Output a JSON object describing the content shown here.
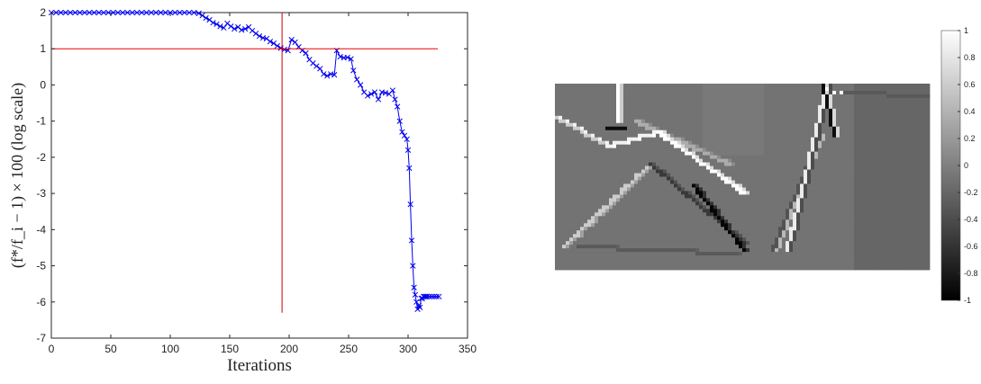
{
  "chart_data": [
    {
      "type": "line",
      "xlabel": "Iterations",
      "ylabel": "(f*/f_i − 1) × 100 (log scale)",
      "xlim": [
        0,
        350
      ],
      "ylim": [
        -7,
        2
      ],
      "x_ticks": [
        "0",
        "50",
        "100",
        "150",
        "200",
        "250",
        "300",
        "350"
      ],
      "y_ticks": [
        "2",
        "1",
        "0",
        "-1",
        "-2",
        "-3",
        "-4",
        "-5",
        "-6",
        "-7"
      ],
      "grid": false,
      "series": [
        {
          "color": "#0000ee",
          "marker": "x",
          "x": [
            0,
            4,
            8,
            12,
            16,
            20,
            24,
            28,
            32,
            36,
            40,
            44,
            48,
            52,
            56,
            60,
            64,
            68,
            72,
            76,
            80,
            84,
            88,
            92,
            96,
            100,
            104,
            108,
            112,
            116,
            120,
            124,
            127,
            130,
            133,
            136,
            139,
            142,
            145,
            148,
            151,
            154,
            157,
            160,
            163,
            166,
            169,
            172,
            175,
            178,
            181,
            184,
            187,
            190,
            193,
            196,
            199,
            202,
            205,
            208,
            211,
            214,
            217,
            220,
            223,
            226,
            229,
            232,
            235,
            238,
            240,
            243,
            246,
            249,
            252,
            254,
            257,
            260,
            263,
            266,
            269,
            272,
            275,
            278,
            281,
            284,
            287,
            289,
            291,
            293,
            295,
            297,
            299,
            300,
            301,
            302,
            303,
            304,
            305,
            306,
            307,
            308,
            309,
            310,
            311,
            312,
            313,
            314,
            315,
            316,
            318,
            320,
            322,
            324,
            326
          ],
          "y": [
            2,
            2,
            2,
            2,
            2,
            2,
            2,
            2,
            2,
            2,
            2,
            2,
            2,
            2,
            2,
            2,
            2,
            2,
            2,
            2,
            2,
            2,
            2,
            2,
            2,
            2,
            2,
            2,
            2,
            2,
            2,
            1.98,
            1.92,
            1.85,
            1.8,
            1.72,
            1.68,
            1.62,
            1.58,
            1.7,
            1.62,
            1.55,
            1.6,
            1.52,
            1.55,
            1.6,
            1.5,
            1.42,
            1.35,
            1.3,
            1.28,
            1.2,
            1.15,
            1.08,
            1.02,
            0.98,
            0.95,
            1.25,
            1.18,
            1.05,
            0.95,
            0.88,
            0.7,
            0.6,
            0.52,
            0.45,
            0.3,
            0.25,
            0.3,
            0.28,
            0.95,
            0.78,
            0.75,
            0.76,
            0.72,
            0.4,
            0.15,
            0,
            -0.2,
            -0.3,
            -0.25,
            -0.2,
            -0.4,
            -0.2,
            -0.22,
            -0.25,
            -0.15,
            -0.4,
            -0.6,
            -1.0,
            -1.3,
            -1.4,
            -1.5,
            -1.8,
            -2.3,
            -3.3,
            -4.3,
            -5.0,
            -5.6,
            -5.8,
            -6.0,
            -6.2,
            -6.1,
            -6.15,
            -5.9,
            -5.9,
            -5.85,
            -5.85,
            -5.85,
            -5.85,
            -5.85,
            -5.85,
            -5.85,
            -5.85,
            -5.85
          ]
        },
        {
          "color": "#ee0000",
          "marker": "none",
          "x": [
            0,
            325
          ],
          "y": [
            1,
            1
          ]
        },
        {
          "color": "#cc0000",
          "marker": "none",
          "x": [
            194,
            194
          ],
          "y": [
            2,
            -6.3
          ]
        }
      ]
    },
    {
      "type": "heatmap",
      "colormap": "gray",
      "clim": [
        -1,
        1
      ],
      "colorbar_ticks": [
        "1",
        "0.8",
        "0.6",
        "0.4",
        "0.2",
        "0",
        "-0.2",
        "-0.4",
        "-0.6",
        "-0.8",
        "-1"
      ]
    }
  ]
}
